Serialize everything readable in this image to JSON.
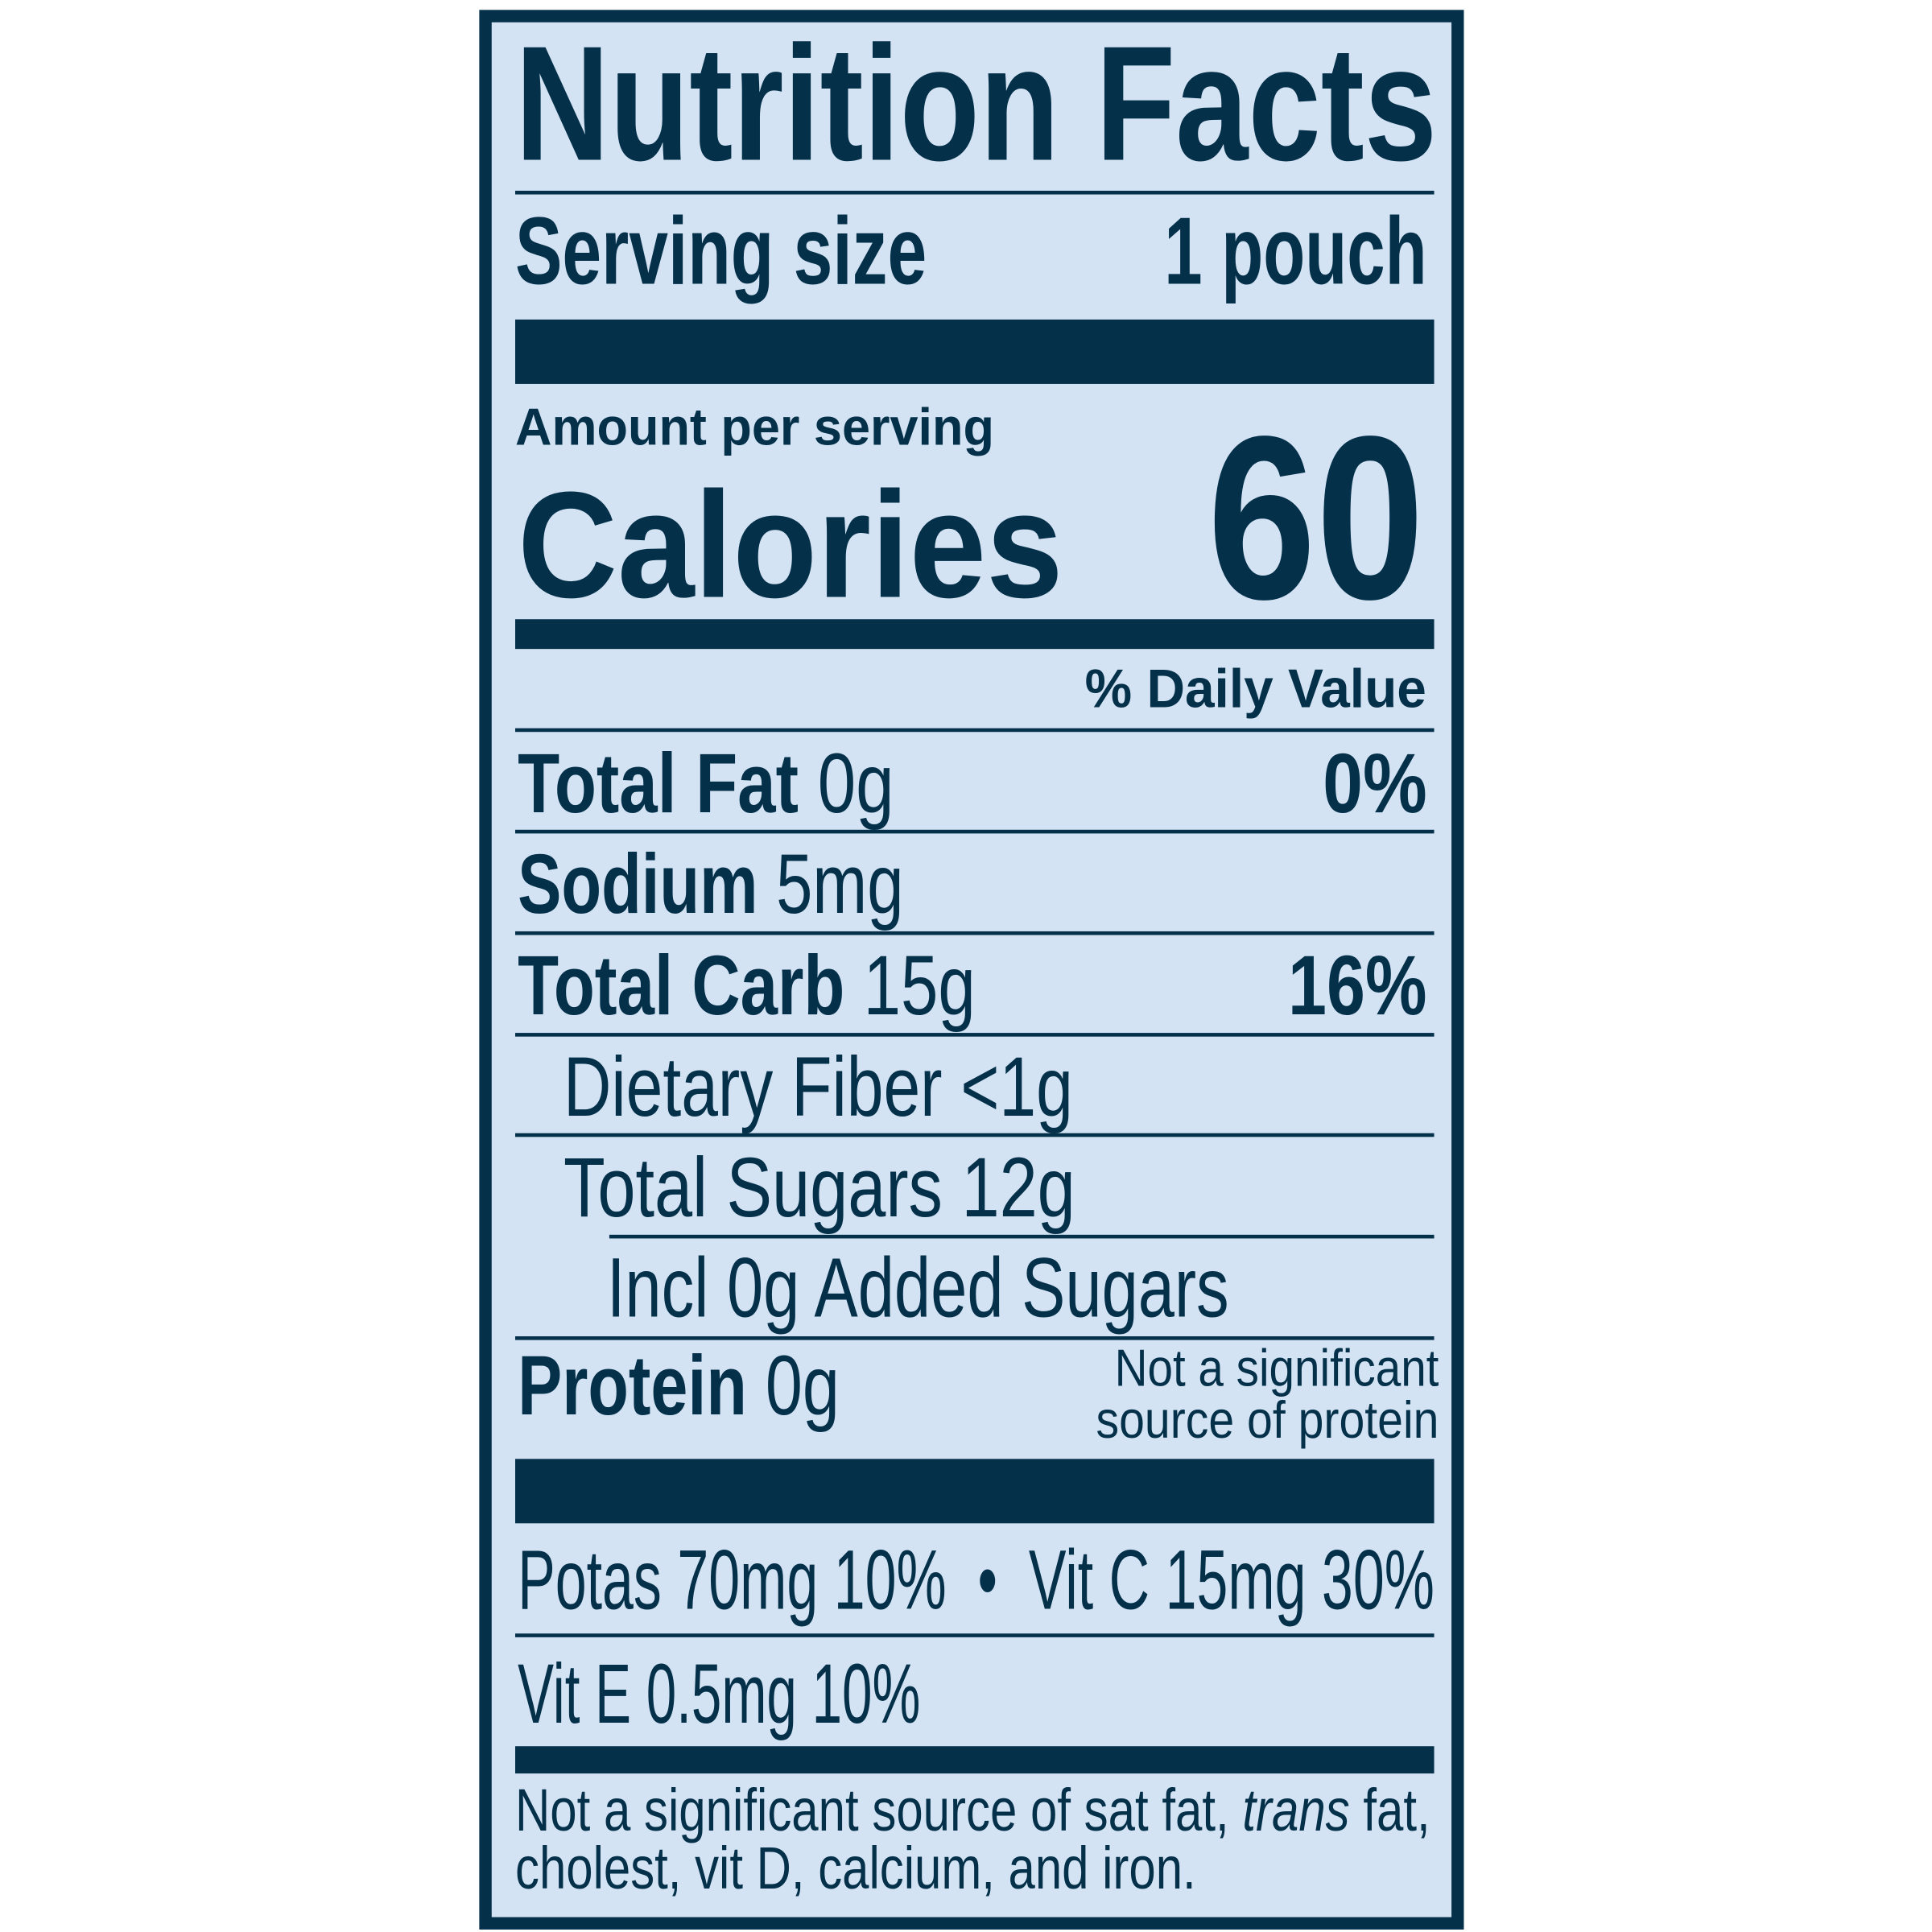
{
  "label": {
    "title": "Nutrition Facts",
    "serving_size_label": "Serving size",
    "serving_size_value": "1 pouch",
    "amount_per_serving": "Amount per serving",
    "calories_label": "Calories",
    "calories_value": "60",
    "daily_value_header": "% Daily Value",
    "nutrients": [
      {
        "name": "Total Fat",
        "amount": "0g",
        "dv": "0%"
      },
      {
        "name": "Sodium",
        "amount": "5mg"
      },
      {
        "name": "Total Carb",
        "amount": "15g",
        "dv": "16%"
      },
      {
        "text": "Dietary Fiber <1g"
      },
      {
        "text": "Total Sugars 12g"
      },
      {
        "text": "Incl 0g Added Sugars"
      },
      {
        "name": "Protein",
        "amount": "0g",
        "note_line1": "Not a significant",
        "note_line2": "source of protein"
      }
    ],
    "micronutrients": {
      "line1": "Potas 70mg 10%  •  Vit C 15mg 30%",
      "line2": "Vit E 0.5mg 10%"
    },
    "footnote": {
      "line1_start": "Not a significant source of sat fat, ",
      "line1_italic": "trans",
      "line1_end": " fat,",
      "line2": "cholest, vit D, calcium, and iron."
    }
  },
  "colors": {
    "ink": "#04304a",
    "background": "#d3e3f3"
  }
}
